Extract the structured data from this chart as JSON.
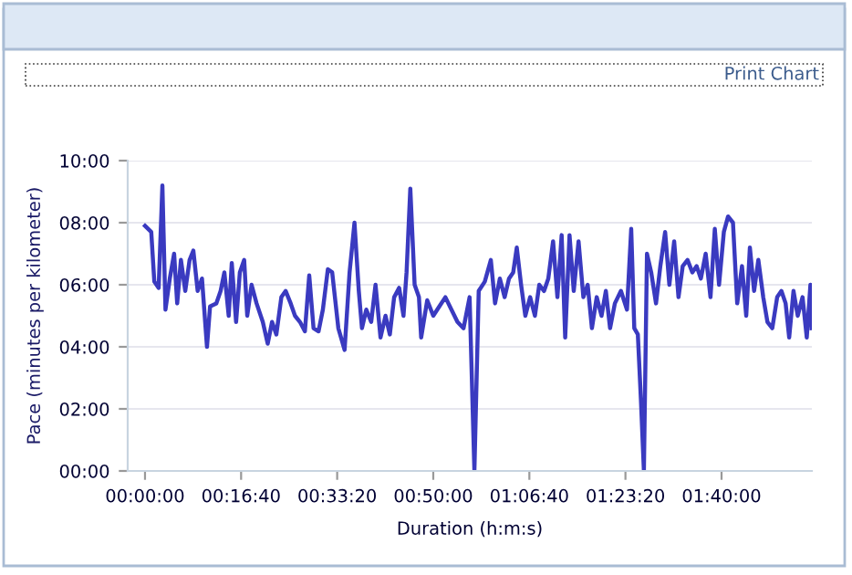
{
  "chart_data": {
    "type": "line",
    "xlabel": "Duration (h:m:s)",
    "ylabel": "Pace (minutes per kilometer)",
    "annotations": [
      "Print Chart"
    ],
    "xlim": [
      -180,
      6940
    ],
    "ylim": [
      0,
      10
    ],
    "xticks": [
      {
        "value": 0,
        "label": "00:00:00"
      },
      {
        "value": 1000,
        "label": "00:16:40"
      },
      {
        "value": 2000,
        "label": "00:33:20"
      },
      {
        "value": 3000,
        "label": "00:50:00"
      },
      {
        "value": 4000,
        "label": "01:06:40"
      },
      {
        "value": 5000,
        "label": "01:23:20"
      },
      {
        "value": 6000,
        "label": "01:40:00"
      }
    ],
    "yticks": [
      {
        "value": 0,
        "label": "00:00"
      },
      {
        "value": 2,
        "label": "02:00"
      },
      {
        "value": 4,
        "label": "04:00"
      },
      {
        "value": 6,
        "label": "06:00"
      },
      {
        "value": 8,
        "label": "08:00"
      },
      {
        "value": 10,
        "label": "10:00"
      }
    ],
    "grid": "y",
    "legend": false,
    "marker": "none",
    "line_style": "solid",
    "series": [
      {
        "color": "#3a3ac0",
        "x": [
          0,
          65,
          97,
          142,
          181,
          213,
          258,
          303,
          335,
          374,
          419,
          464,
          503,
          548,
          593,
          645,
          677,
          742,
          787,
          826,
          871,
          903,
          948,
          987,
          1032,
          1064,
          1109,
          1161,
          1226,
          1277,
          1322,
          1367,
          1419,
          1464,
          1516,
          1561,
          1613,
          1664,
          1709,
          1754,
          1806,
          1851,
          1903,
          1948,
          2012,
          2077,
          2129,
          2180,
          2225,
          2258,
          2303,
          2354,
          2399,
          2451,
          2503,
          2548,
          2593,
          2645,
          2690,
          2722,
          2761,
          2806,
          2851,
          2874,
          2937,
          3000,
          3063,
          3126,
          3189,
          3252,
          3315,
          3378,
          3428,
          3473,
          3536,
          3599,
          3643,
          3693,
          3743,
          3788,
          3832,
          3869,
          3914,
          3958,
          4008,
          4058,
          4103,
          4153,
          4197,
          4247,
          4292,
          4336,
          4373,
          4418,
          4462,
          4512,
          4562,
          4607,
          4651,
          4701,
          4751,
          4796,
          4840,
          4890,
          4953,
          5016,
          5060,
          5092,
          5129,
          5161,
          5192,
          5224,
          5268,
          5318,
          5363,
          5413,
          5457,
          5507,
          5552,
          5596,
          5646,
          5696,
          5741,
          5785,
          5835,
          5885,
          5930,
          5974,
          6024,
          6068,
          6119,
          6163,
          6213,
          6257,
          6295,
          6339,
          6383,
          6434,
          6478,
          6528,
          6579,
          6623,
          6667,
          6704,
          6749,
          6793,
          6843,
          6887,
          6925,
          6938
        ],
        "values": [
          7.9,
          7.7,
          6.1,
          5.9,
          9.2,
          5.2,
          6.2,
          7.0,
          5.4,
          6.8,
          5.8,
          6.8,
          7.1,
          5.8,
          6.2,
          4.0,
          5.3,
          5.4,
          5.8,
          6.4,
          5.0,
          6.7,
          4.8,
          6.4,
          6.8,
          5.0,
          6.0,
          5.4,
          4.8,
          4.1,
          4.8,
          4.4,
          5.6,
          5.8,
          5.4,
          5.0,
          4.8,
          4.5,
          6.3,
          4.6,
          4.5,
          5.2,
          6.5,
          6.4,
          4.6,
          3.9,
          6.4,
          8.0,
          5.8,
          4.6,
          5.2,
          4.8,
          6.0,
          4.3,
          5.0,
          4.4,
          5.6,
          5.9,
          5.0,
          6.4,
          9.1,
          6.0,
          5.6,
          4.3,
          5.5,
          5.0,
          5.3,
          5.6,
          5.2,
          4.8,
          4.6,
          5.6,
          0,
          5.8,
          6.1,
          6.8,
          5.4,
          6.2,
          5.6,
          6.2,
          6.4,
          7.2,
          6.0,
          5.0,
          5.6,
          5.0,
          6.0,
          5.8,
          6.2,
          7.4,
          5.6,
          7.6,
          4.3,
          7.6,
          5.8,
          7.4,
          5.6,
          6.0,
          4.6,
          5.6,
          5.0,
          5.8,
          4.6,
          5.4,
          5.8,
          5.2,
          7.8,
          4.6,
          4.4,
          2.3,
          0,
          7.0,
          6.4,
          5.4,
          6.6,
          7.7,
          6.0,
          7.4,
          5.6,
          6.6,
          6.8,
          6.4,
          6.6,
          6.2,
          7.0,
          5.6,
          7.8,
          6.0,
          7.7,
          8.2,
          8.0,
          5.4,
          6.6,
          5.0,
          7.2,
          5.8,
          6.8,
          5.6,
          4.8,
          4.6,
          5.6,
          5.8,
          5.4,
          4.3,
          5.8,
          5.0,
          5.6,
          4.3,
          6.0,
          4.6
        ]
      }
    ]
  }
}
